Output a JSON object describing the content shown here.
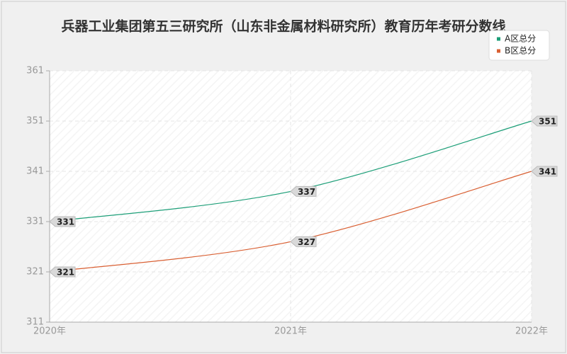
{
  "chart_data": {
    "type": "line",
    "title": "兵器工业集团第五三研究所（山东非金属材料研究所）教育历年考研分数线",
    "categories": [
      "2020年",
      "2021年",
      "2022年"
    ],
    "series": [
      {
        "name": "A区总分",
        "color": "#1b9e77",
        "values": [
          331,
          337,
          351
        ]
      },
      {
        "name": "B区总分",
        "color": "#d95f32",
        "values": [
          321,
          327,
          341
        ]
      }
    ],
    "ylim": [
      311,
      361
    ],
    "yticks": [
      311,
      321,
      331,
      341,
      351,
      361
    ],
    "grid": true,
    "legend": "top-right"
  }
}
